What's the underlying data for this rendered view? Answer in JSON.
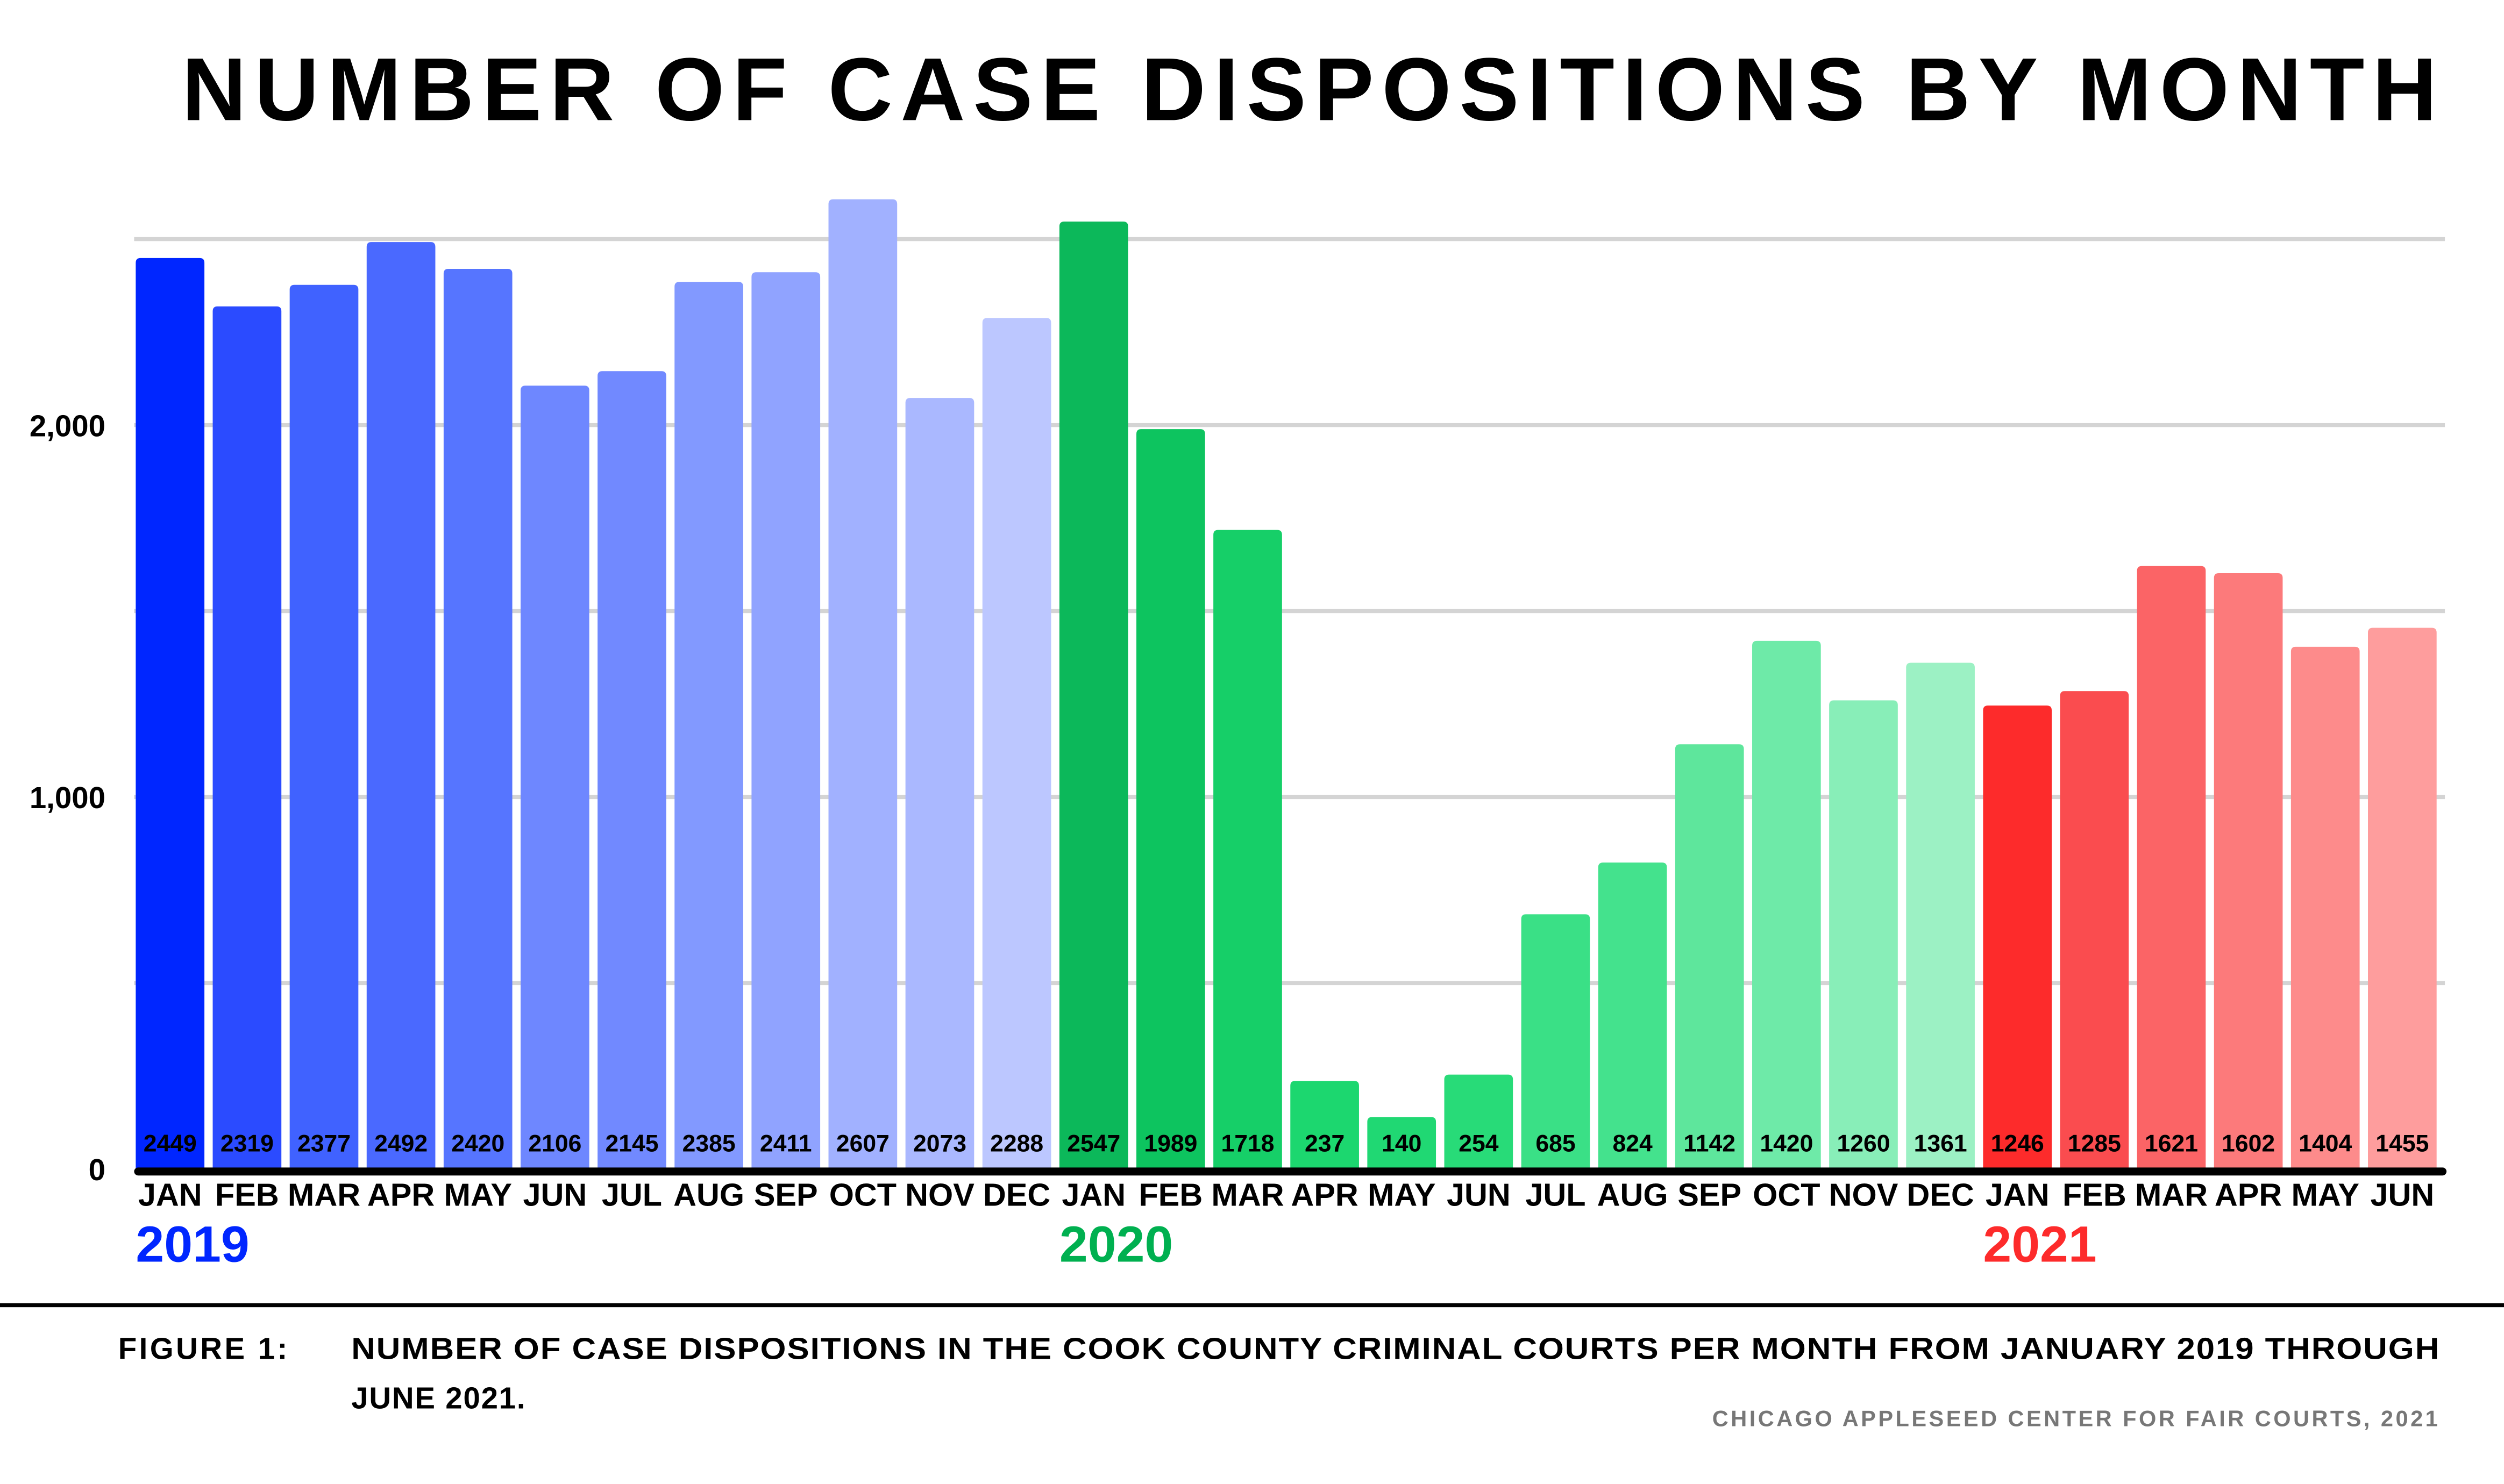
{
  "chart_data": {
    "type": "bar",
    "title": "NUMBER OF CASE DISPOSITIONS BY MONTH",
    "xlabel": "",
    "ylabel": "",
    "ylim": [
      0,
      2600
    ],
    "yticks": [
      0,
      1000,
      2000
    ],
    "ytick_labels": [
      "0",
      "1,000",
      "2,000"
    ],
    "gridlines": [
      500,
      1000,
      1500,
      2000,
      2500
    ],
    "grid": true,
    "categories": [
      "JAN",
      "FEB",
      "MAR",
      "APR",
      "MAY",
      "JUN",
      "JUL",
      "AUG",
      "SEP",
      "OCT",
      "NOV",
      "DEC",
      "JAN",
      "FEB",
      "MAR",
      "APR",
      "MAY",
      "JUN",
      "JUL",
      "AUG",
      "SEP",
      "OCT",
      "NOV",
      "DEC",
      "JAN",
      "FEB",
      "MAR",
      "APR",
      "MAY",
      "JUN"
    ],
    "values": [
      2449,
      2319,
      2377,
      2492,
      2420,
      2106,
      2145,
      2385,
      2411,
      2607,
      2073,
      2288,
      2547,
      1989,
      1718,
      237,
      140,
      254,
      685,
      824,
      1142,
      1420,
      1260,
      1361,
      1246,
      1285,
      1621,
      1602,
      1404,
      1455
    ],
    "bar_colors": [
      "#0026ff",
      "#2b4bff",
      "#4062ff",
      "#4a69ff",
      "#5675ff",
      "#6e87ff",
      "#7189ff",
      "#8299ff",
      "#90a3ff",
      "#a1b1ff",
      "#aab8ff",
      "#bcc7ff",
      "#0cb85a",
      "#0dc45f",
      "#16cf68",
      "#1cd76f",
      "#20d873",
      "#28db78",
      "#3ae086",
      "#44e28d",
      "#5ee69c",
      "#6eeaa8",
      "#88eeb8",
      "#9cf1c4",
      "#fd2b2b",
      "#fa4c4f",
      "#fb6466",
      "#fc7a7b",
      "#fd8b8b",
      "#fe9d9d"
    ],
    "years": [
      {
        "label": "2019",
        "start_index": 0,
        "color": "#0026ff"
      },
      {
        "label": "2020",
        "start_index": 12,
        "color": "#00b050"
      },
      {
        "label": "2021",
        "start_index": 24,
        "color": "#fd2b2b"
      }
    ]
  },
  "caption": {
    "label": "FIGURE 1:",
    "line1": "NUMBER OF CASE DISPOSITIONS IN THE COOK COUNTY CRIMINAL COURTS PER MONTH FROM JANUARY 2019 THROUGH",
    "line2": "JUNE 2021.",
    "source": "CHICAGO APPLESEED CENTER FOR FAIR COURTS, 2021"
  }
}
